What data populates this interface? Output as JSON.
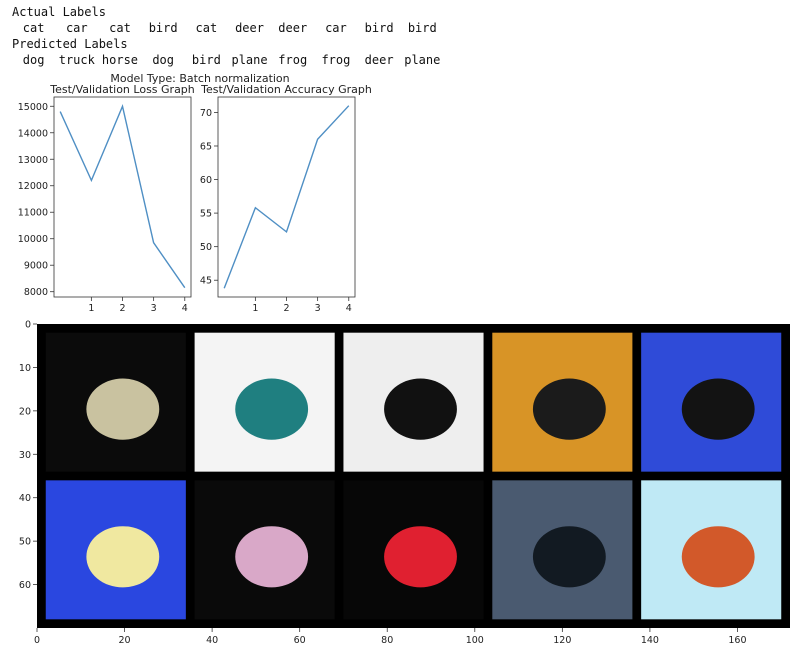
{
  "output": {
    "actual_header": "Actual Labels",
    "actual_labels": [
      "cat",
      "car",
      "cat",
      "bird",
      "cat",
      "deer",
      "deer",
      "car",
      "bird",
      "bird"
    ],
    "predicted_header": "Predicted Labels",
    "predicted_labels": [
      "dog",
      "truck",
      "horse",
      "dog",
      "bird",
      "plane",
      "frog",
      "frog",
      "deer",
      "plane"
    ]
  },
  "figure": {
    "suptitle": "Model Type: Batch normalization"
  },
  "chart_data": [
    {
      "type": "line",
      "title": "Test/Validation Loss Graph",
      "xlabel": "",
      "ylabel": "",
      "x": [
        0,
        1,
        2,
        3,
        4
      ],
      "y": [
        14800,
        12200,
        15000,
        9850,
        8150
      ],
      "xticks": [
        1,
        2,
        3,
        4
      ],
      "yticks": [
        8000,
        9000,
        10000,
        11000,
        12000,
        13000,
        14000,
        15000
      ],
      "xlim": [
        -0.2,
        4.2
      ],
      "ylim": [
        7800,
        15350
      ],
      "grid": false,
      "color": "#4f8fc4"
    },
    {
      "type": "line",
      "title": "Test/Validation Accuracy Graph",
      "xlabel": "",
      "ylabel": "",
      "x": [
        0,
        1,
        2,
        3,
        4
      ],
      "y": [
        43.8,
        55.8,
        52.2,
        66.0,
        71.0
      ],
      "xticks": [
        1,
        2,
        3,
        4
      ],
      "yticks": [
        45,
        50,
        55,
        60,
        65,
        70
      ],
      "xlim": [
        -0.2,
        4.2
      ],
      "ylim": [
        42.5,
        72.3
      ],
      "grid": false,
      "color": "#4f8fc4"
    }
  ],
  "image_grid": {
    "xticks": [
      0,
      20,
      40,
      60,
      80,
      100,
      120,
      140,
      160
    ],
    "yticks": [
      0,
      10,
      20,
      30,
      40,
      50,
      60
    ],
    "cells": [
      {
        "name": "image-cell-1",
        "bg": "#0b0b0b",
        "subject": "#c9c2a0"
      },
      {
        "name": "image-cell-2",
        "bg": "#f4f4f4",
        "subject": "#1f7f80"
      },
      {
        "name": "image-cell-3",
        "bg": "#eeeeee",
        "subject": "#111111"
      },
      {
        "name": "image-cell-4",
        "bg": "#d89426",
        "subject": "#1b1b1b"
      },
      {
        "name": "image-cell-5",
        "bg": "#2f4bd8",
        "subject": "#131313"
      },
      {
        "name": "image-cell-6",
        "bg": "#2a47e0",
        "subject": "#f0e8a0"
      },
      {
        "name": "image-cell-7",
        "bg": "#0a0a0a",
        "subject": "#d9a8c8"
      },
      {
        "name": "image-cell-8",
        "bg": "#070707",
        "subject": "#e02030"
      },
      {
        "name": "image-cell-9",
        "bg": "#4a5a70",
        "subject": "#121a22"
      },
      {
        "name": "image-cell-10",
        "bg": "#bfe9f5",
        "subject": "#d2592a"
      }
    ]
  }
}
